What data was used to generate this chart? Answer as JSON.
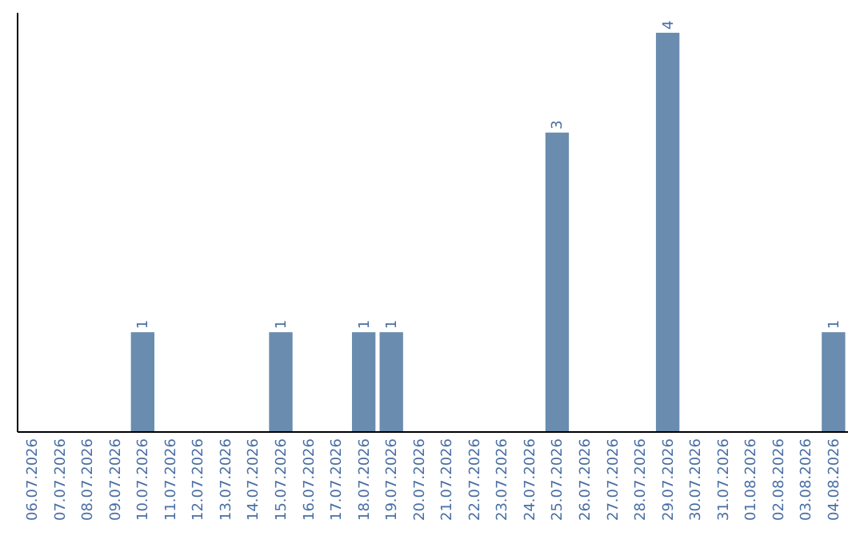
{
  "chart_data": {
    "type": "bar",
    "categories": [
      "06.07.2026",
      "07.07.2026",
      "08.07.2026",
      "09.07.2026",
      "10.07.2026",
      "11.07.2026",
      "12.07.2026",
      "13.07.2026",
      "14.07.2026",
      "15.07.2026",
      "16.07.2026",
      "17.07.2026",
      "18.07.2026",
      "19.07.2026",
      "20.07.2026",
      "21.07.2026",
      "22.07.2026",
      "23.07.2026",
      "24.07.2026",
      "25.07.2026",
      "26.07.2026",
      "27.07.2026",
      "28.07.2026",
      "29.07.2026",
      "30.07.2026",
      "31.07.2026",
      "01.08.2026",
      "02.08.2026",
      "03.08.2026",
      "04.08.2026"
    ],
    "values": [
      0,
      0,
      0,
      0,
      1,
      0,
      0,
      0,
      0,
      1,
      0,
      0,
      1,
      1,
      0,
      0,
      0,
      0,
      0,
      3,
      0,
      0,
      0,
      4,
      0,
      0,
      0,
      0,
      0,
      1
    ],
    "value_labels": [
      null,
      null,
      null,
      null,
      "1",
      null,
      null,
      null,
      null,
      "1",
      null,
      null,
      "1",
      "1",
      null,
      null,
      null,
      null,
      null,
      "3",
      null,
      null,
      null,
      "4",
      null,
      null,
      null,
      null,
      null,
      "1"
    ],
    "color": "#6a8caf",
    "ylim": [
      0,
      4.2
    ],
    "tick_labels": "x"
  }
}
